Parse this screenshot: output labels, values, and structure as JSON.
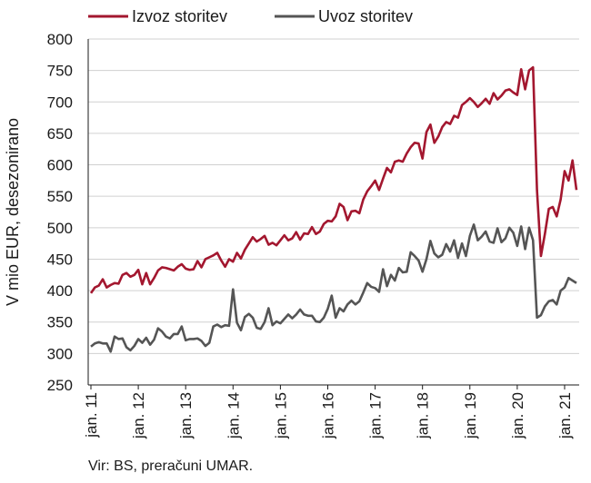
{
  "chart_data": {
    "type": "line",
    "title": "",
    "ylabel": "V mio EUR, desezonirano",
    "ylim": [
      250,
      800
    ],
    "yticks": [
      250,
      300,
      350,
      400,
      450,
      500,
      550,
      600,
      650,
      700,
      750,
      800
    ],
    "xticks": [
      "jan. 11",
      "jan. 12",
      "jan. 13",
      "jan. 14",
      "jan. 15",
      "jan. 16",
      "jan. 17",
      "jan. 18",
      "jan. 19",
      "jan. 20",
      "jan. 21"
    ],
    "grid": "horizontal",
    "legend_position": "top",
    "x_start": "2011-01",
    "x_end": "2021-01",
    "series": [
      {
        "name": "Izvoz storitev",
        "color": "#a3172f",
        "values": [
          396,
          405,
          408,
          418,
          405,
          409,
          412,
          411,
          425,
          428,
          422,
          425,
          433,
          410,
          428,
          410,
          420,
          432,
          437,
          436,
          434,
          432,
          438,
          442,
          435,
          433,
          434,
          447,
          437,
          450,
          453,
          456,
          460,
          448,
          438,
          450,
          446,
          460,
          451,
          465,
          475,
          485,
          478,
          482,
          487,
          473,
          476,
          472,
          480,
          488,
          480,
          483,
          493,
          481,
          491,
          490,
          501,
          490,
          494,
          506,
          511,
          510,
          518,
          538,
          533,
          512,
          526,
          527,
          523,
          545,
          558,
          566,
          575,
          560,
          578,
          595,
          588,
          605,
          607,
          605,
          618,
          628,
          635,
          634,
          610,
          652,
          664,
          635,
          645,
          660,
          668,
          665,
          678,
          675,
          695,
          700,
          706,
          700,
          692,
          698,
          705,
          697,
          714,
          704,
          710,
          718,
          720,
          715,
          711,
          752,
          720,
          750,
          755,
          560,
          455,
          490,
          530,
          533,
          518,
          545,
          590,
          575,
          607,
          560
        ],
        "unit": "mio EUR"
      },
      {
        "name": "Uvoz storitev",
        "color": "#555555",
        "values": [
          311,
          316,
          318,
          316,
          316,
          303,
          327,
          323,
          324,
          310,
          305,
          312,
          323,
          317,
          325,
          314,
          322,
          340,
          335,
          327,
          324,
          331,
          331,
          343,
          321,
          323,
          323,
          324,
          320,
          312,
          317,
          343,
          346,
          342,
          345,
          344,
          402,
          349,
          337,
          358,
          363,
          357,
          341,
          339,
          350,
          372,
          345,
          351,
          348,
          355,
          362,
          356,
          362,
          370,
          362,
          360,
          360,
          351,
          350,
          357,
          371,
          392,
          357,
          372,
          367,
          378,
          384,
          378,
          383,
          397,
          412,
          406,
          404,
          398,
          434,
          407,
          425,
          416,
          436,
          429,
          430,
          461,
          455,
          448,
          430,
          450,
          479,
          459,
          453,
          457,
          474,
          462,
          480,
          452,
          475,
          455,
          487,
          505,
          480,
          486,
          494,
          478,
          476,
          499,
          477,
          483,
          500,
          492,
          471,
          502,
          466,
          500,
          480,
          357,
          361,
          375,
          383,
          385,
          378,
          400,
          405,
          420,
          416,
          412
        ],
        "unit": "mio EUR"
      }
    ]
  },
  "source_note": "Vir: BS, preračuni UMAR."
}
